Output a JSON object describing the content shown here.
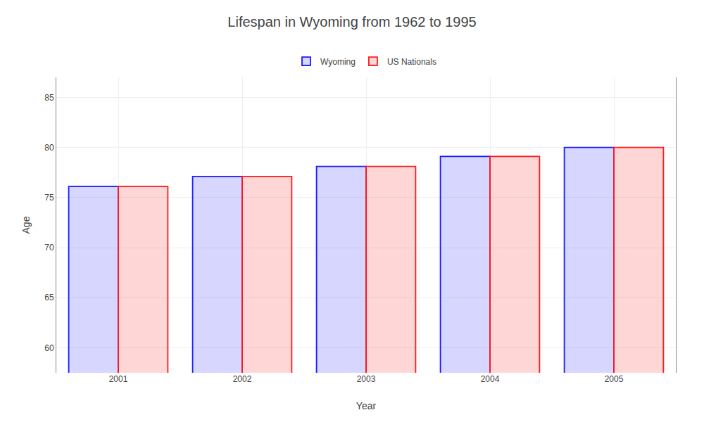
{
  "chart_data": {
    "type": "bar",
    "title": "Lifespan in Wyoming from 1962 to 1995",
    "x_label": "Year",
    "y_label": "Age",
    "categories": [
      "2001",
      "2002",
      "2003",
      "2004",
      "2005"
    ],
    "series": [
      {
        "name": "Wyoming",
        "color": "#1a1aff",
        "values": [
          76.1,
          77.1,
          78.1,
          79.1,
          80.0
        ]
      },
      {
        "name": "US Nationals",
        "color": "#ff1a1a",
        "values": [
          76.1,
          77.1,
          78.1,
          79.1,
          80.0
        ]
      }
    ],
    "ylim": [
      57.5,
      87
    ],
    "yticks": [
      60,
      65,
      70,
      75,
      80,
      85
    ],
    "grid": true,
    "legend": "upper center"
  }
}
